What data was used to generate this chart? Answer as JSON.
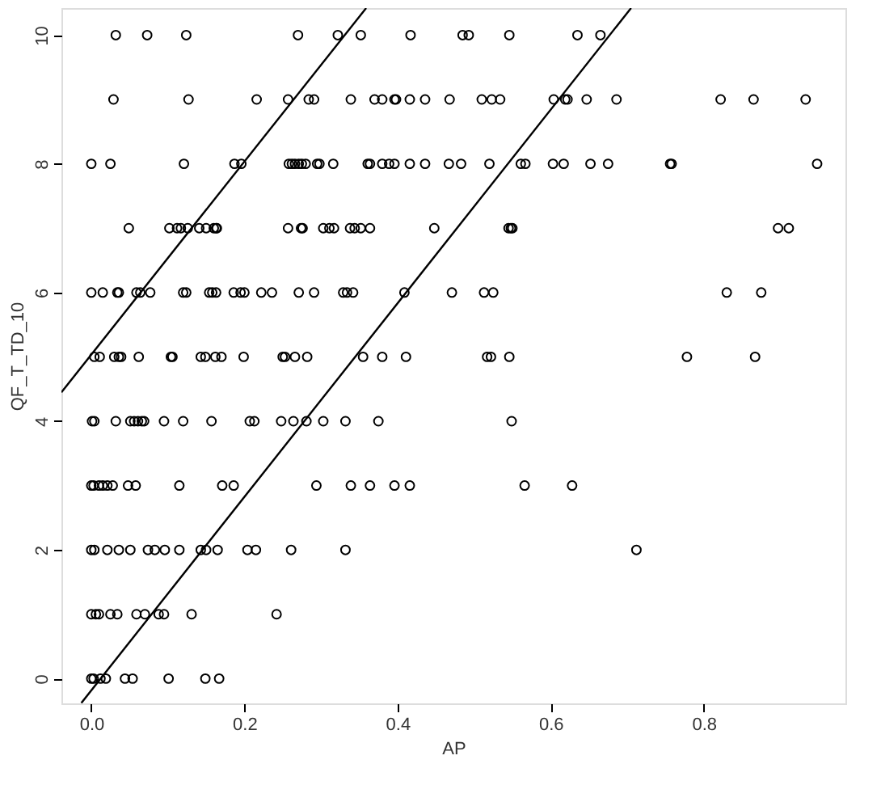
{
  "chart_data": {
    "type": "scatter",
    "xlabel": "AP",
    "ylabel": "QF_T_TD_10",
    "xlim": [
      -0.039,
      0.985
    ],
    "ylim": [
      -0.385,
      10.42
    ],
    "xticks": [
      {
        "value": 0,
        "label": "0.0"
      },
      0.2,
      0.4,
      0.6,
      0.8
    ],
    "yticks": [
      0,
      2,
      4,
      6,
      8,
      10
    ],
    "grid": false,
    "series": [
      {
        "marker": "circle",
        "color": "#000000",
        "x": [
          0.032,
          0.073,
          0.124,
          0.27,
          0.322,
          0.352,
          0.417,
          0.485,
          0.493,
          0.546,
          0.635,
          0.665,
          0.029,
          0.127,
          0.216,
          0.257,
          0.284,
          0.291,
          0.339,
          0.37,
          0.38,
          0.396,
          0.398,
          0.416,
          0.436,
          0.468,
          0.51,
          0.523,
          0.534,
          0.604,
          0.619,
          0.622,
          0.647,
          0.686,
          0.822,
          0.865,
          0.933,
          0,
          0.025,
          0.121,
          0.187,
          0.196,
          0.258,
          0.262,
          0.266,
          0.271,
          0.275,
          0.28,
          0.295,
          0.298,
          0.316,
          0.361,
          0.364,
          0.38,
          0.389,
          0.396,
          0.416,
          0.436,
          0.467,
          0.483,
          0.52,
          0.561,
          0.567,
          0.603,
          0.617,
          0.652,
          0.675,
          0.756,
          0.758,
          0.948,
          0.049,
          0.102,
          0.112,
          0.117,
          0.126,
          0.141,
          0.15,
          0.16,
          0.163,
          0.164,
          0.257,
          0.274,
          0.276,
          0.303,
          0.311,
          0.317,
          0.338,
          0.344,
          0.352,
          0.364,
          0.448,
          0.545,
          0.548,
          0.55,
          0.897,
          0.911,
          0,
          0.015,
          0.034,
          0.036,
          0.059,
          0.064,
          0.077,
          0.12,
          0.124,
          0.154,
          0.158,
          0.163,
          0.186,
          0.195,
          0.2,
          0.222,
          0.236,
          0.271,
          0.291,
          0.329,
          0.334,
          0.342,
          0.409,
          0.471,
          0.513,
          0.525,
          0.83,
          0.875,
          0.004,
          0.011,
          0.03,
          0.036,
          0.039,
          0.062,
          0.104,
          0.106,
          0.143,
          0.149,
          0.162,
          0.17,
          0.199,
          0.25,
          0.253,
          0.266,
          0.282,
          0.355,
          0.38,
          0.411,
          0.517,
          0.522,
          0.546,
          0.778,
          0.867,
          0.001,
          0.004,
          0.032,
          0.051,
          0.056,
          0.061,
          0.066,
          0.069,
          0.095,
          0.12,
          0.157,
          0.207,
          0.213,
          0.248,
          0.264,
          0.281,
          0.303,
          0.332,
          0.375,
          0.549,
          0,
          0.003,
          0.01,
          0.015,
          0.021,
          0.028,
          0.048,
          0.058,
          0.115,
          0.171,
          0.186,
          0.294,
          0.339,
          0.364,
          0.396,
          0.416,
          0.566,
          0.628,
          0,
          0.004,
          0.021,
          0.036,
          0.051,
          0.074,
          0.083,
          0.096,
          0.115,
          0.143,
          0.15,
          0.165,
          0.204,
          0.215,
          0.261,
          0.332,
          0.712,
          0,
          0.006,
          0.01,
          0.025,
          0.034,
          0.059,
          0.07,
          0.088,
          0.095,
          0.131,
          0.242,
          0,
          0.003,
          0.012,
          0.019,
          0.044,
          0.054,
          0.101,
          0.149,
          0.167
        ],
        "values": [
          10,
          10,
          10,
          10,
          10,
          10,
          10,
          10,
          10,
          10,
          10,
          10,
          9,
          9,
          9,
          9,
          9,
          9,
          9,
          9,
          9,
          9,
          9,
          9,
          9,
          9,
          9,
          9,
          9,
          9,
          9,
          9,
          9,
          9,
          9,
          9,
          9,
          8,
          8,
          8,
          8,
          8,
          8,
          8,
          8,
          8,
          8,
          8,
          8,
          8,
          8,
          8,
          8,
          8,
          8,
          8,
          8,
          8,
          8,
          8,
          8,
          8,
          8,
          8,
          8,
          8,
          8,
          8,
          8,
          8,
          7,
          7,
          7,
          7,
          7,
          7,
          7,
          7,
          7,
          7,
          7,
          7,
          7,
          7,
          7,
          7,
          7,
          7,
          7,
          7,
          7,
          7,
          7,
          7,
          7,
          7,
          6,
          6,
          6,
          6,
          6,
          6,
          6,
          6,
          6,
          6,
          6,
          6,
          6,
          6,
          6,
          6,
          6,
          6,
          6,
          6,
          6,
          6,
          6,
          6,
          6,
          6,
          6,
          6,
          5,
          5,
          5,
          5,
          5,
          5,
          5,
          5,
          5,
          5,
          5,
          5,
          5,
          5,
          5,
          5,
          5,
          5,
          5,
          5,
          5,
          5,
          5,
          5,
          5,
          4,
          4,
          4,
          4,
          4,
          4,
          4,
          4,
          4,
          4,
          4,
          4,
          4,
          4,
          4,
          4,
          4,
          4,
          4,
          4,
          3,
          3,
          3,
          3,
          3,
          3,
          3,
          3,
          3,
          3,
          3,
          3,
          3,
          3,
          3,
          3,
          3,
          3,
          2,
          2,
          2,
          2,
          2,
          2,
          2,
          2,
          2,
          2,
          2,
          2,
          2,
          2,
          2,
          2,
          2,
          1,
          1,
          1,
          1,
          1,
          1,
          1,
          1,
          1,
          1,
          1,
          0,
          0,
          0,
          0,
          0,
          0,
          0,
          0,
          0
        ]
      },
      {
        "type": "line",
        "color": "#000000",
        "x": [
          -0.039,
          0.359
        ],
        "values": [
          4.45,
          10.42
        ]
      },
      {
        "type": "line",
        "color": "#000000",
        "x": [
          -0.013,
          0.705
        ],
        "values": [
          -0.38,
          10.42
        ]
      }
    ]
  }
}
